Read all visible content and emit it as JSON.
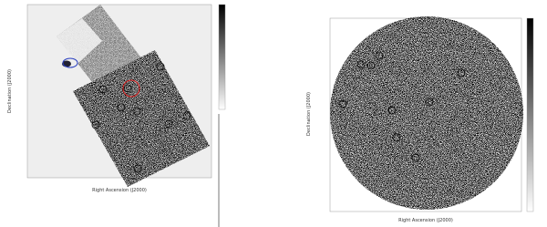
{
  "panels": [
    {
      "x_label": "Right Ascension (J2000)",
      "y_label": "Declination (J2000)"
    },
    {
      "x_label": "Right Ascension (J2000)",
      "y_label": "Declination (J2000)"
    }
  ]
}
